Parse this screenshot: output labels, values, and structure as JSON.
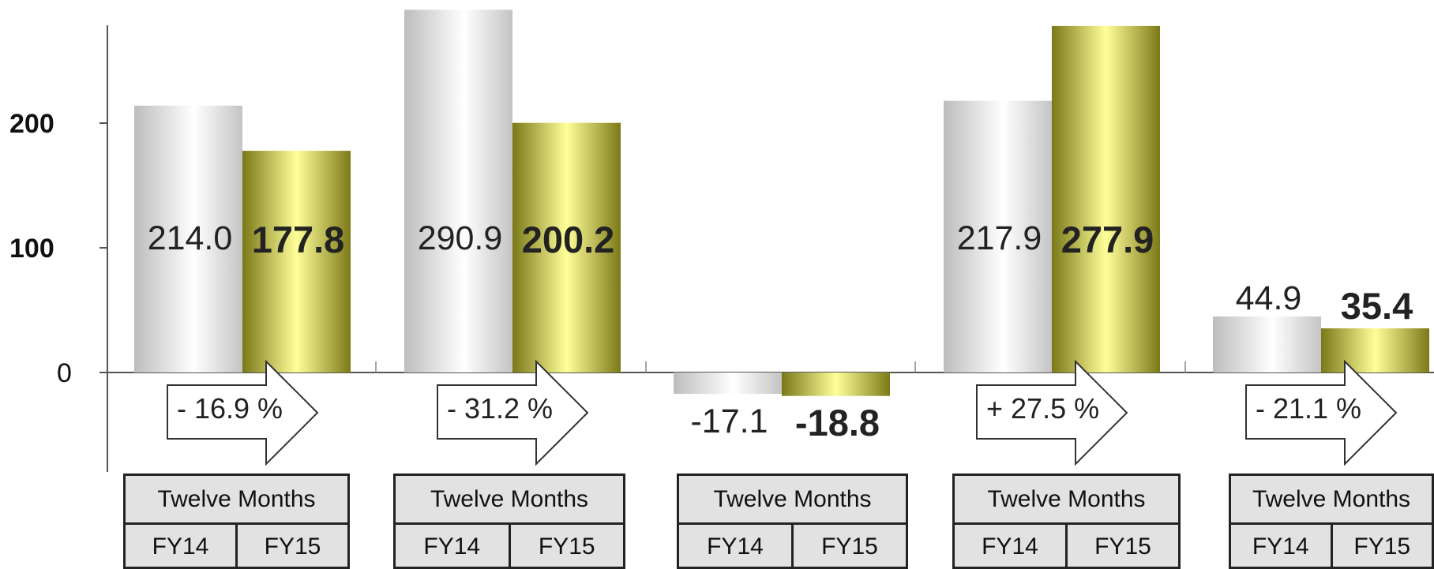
{
  "chart_data": {
    "type": "bar",
    "categories": [
      "Twelve Months",
      "Twelve Months",
      "Twelve Months",
      "Twelve Months",
      "Twelve Months"
    ],
    "series": [
      {
        "name": "FY14",
        "values": [
          214.0,
          290.9,
          -17.1,
          217.9,
          44.9
        ],
        "labels": [
          "214.0",
          "290.9",
          "-17.1",
          "217.9",
          "44.9"
        ]
      },
      {
        "name": "FY15",
        "values": [
          177.8,
          200.2,
          -18.8,
          277.9,
          35.4
        ],
        "labels": [
          "177.8",
          "200.2",
          "-18.8",
          "277.9",
          "35.4"
        ]
      }
    ],
    "changes": [
      "- 16.9 %",
      "- 31.2 %",
      "",
      "+ 27.5 %",
      "- 21.1 %"
    ],
    "yticks": [
      "0",
      "100",
      "200"
    ],
    "ylim": [
      -80,
      290
    ],
    "title": "",
    "xlabel": "",
    "ylabel": "",
    "grid": false,
    "legend": "none",
    "colors": {
      "fy14": "#d9d9d9",
      "fy15": "#c9c640"
    }
  },
  "periods": [
    {
      "header": "Twelve Months",
      "col1": "FY14",
      "col2": "FY15"
    },
    {
      "header": "Twelve Months",
      "col1": "FY14",
      "col2": "FY15"
    },
    {
      "header": "Twelve Months",
      "col1": "FY14",
      "col2": "FY15"
    },
    {
      "header": "Twelve Months",
      "col1": "FY14",
      "col2": "FY15"
    },
    {
      "header": "Twelve Months",
      "col1": "FY14",
      "col2": "FY15"
    }
  ]
}
